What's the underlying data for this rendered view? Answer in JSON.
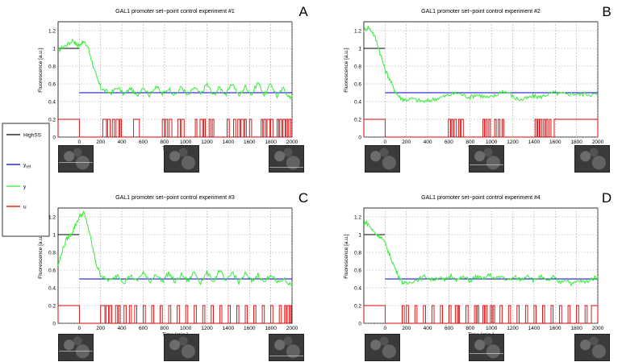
{
  "colors": {
    "highss": "#000000",
    "yref": "#0000cc",
    "y": "#33ee33",
    "u": "#dd0000",
    "grid": "#999999"
  },
  "legend": {
    "items": [
      {
        "label": "HighSS",
        "color": "#000000",
        "sub": ""
      },
      {
        "label": "y",
        "color": "#0000cc",
        "sub": "ref"
      },
      {
        "label": "y",
        "color": "#33ee33",
        "sub": ""
      },
      {
        "label": "u",
        "color": "#dd0000",
        "sub": ""
      }
    ]
  },
  "thumbnails": {
    "count_per_panel": 3,
    "description_visible": false
  },
  "chart_data": [
    {
      "type": "line",
      "panel": "A",
      "title": "GAL1 promoter set−point control experiment #1",
      "xlabel": "Time [min.]",
      "ylabel": "Fluorescence [a.u.]",
      "xlim": [
        -200,
        2000
      ],
      "ylim": [
        0,
        1.3
      ],
      "xticks": [
        "0",
        "200",
        "400",
        "600",
        "800",
        "1000",
        "1200",
        "1400",
        "1600",
        "1800",
        "2000"
      ],
      "yticks": [
        "0",
        "0.2",
        "0.4",
        "0.6",
        "0.8",
        "1",
        "1.2"
      ],
      "highss": {
        "x": [
          -200,
          0
        ],
        "y": 1.0
      },
      "yref": {
        "x": [
          0,
          2000
        ],
        "y": 0.5
      },
      "y": {
        "x": [
          -200,
          -150,
          -100,
          -60,
          -20,
          0,
          40,
          80,
          120,
          160,
          200,
          240,
          300,
          360,
          420,
          480,
          540,
          600,
          660,
          720,
          780,
          840,
          900,
          960,
          1020,
          1080,
          1140,
          1200,
          1260,
          1320,
          1380,
          1440,
          1500,
          1560,
          1620,
          1680,
          1740,
          1800,
          1860,
          1920,
          1980,
          2000
        ],
        "values": [
          0.97,
          1.02,
          1.05,
          1.1,
          1.03,
          1.05,
          1.07,
          1.02,
          0.85,
          0.68,
          0.56,
          0.52,
          0.5,
          0.56,
          0.48,
          0.55,
          0.46,
          0.57,
          0.47,
          0.58,
          0.48,
          0.55,
          0.47,
          0.57,
          0.46,
          0.56,
          0.48,
          0.6,
          0.47,
          0.56,
          0.48,
          0.61,
          0.46,
          0.57,
          0.48,
          0.62,
          0.47,
          0.6,
          0.46,
          0.55,
          0.44,
          0.47
        ]
      },
      "u": {
        "level": 0.2,
        "on_intervals": [
          [
            -200,
            0
          ],
          [
            220,
            255
          ],
          [
            265,
            290
          ],
          [
            310,
            330
          ],
          [
            345,
            370
          ],
          [
            380,
            395
          ],
          [
            510,
            565
          ],
          [
            780,
            800
          ],
          [
            810,
            830
          ],
          [
            845,
            870
          ],
          [
            925,
            950
          ],
          [
            960,
            985
          ],
          [
            1090,
            1105
          ],
          [
            1135,
            1160
          ],
          [
            1170,
            1185
          ],
          [
            1220,
            1235
          ],
          [
            1250,
            1265
          ],
          [
            1390,
            1410
          ],
          [
            1450,
            1470
          ],
          [
            1490,
            1510
          ],
          [
            1520,
            1545
          ],
          [
            1555,
            1570
          ],
          [
            1600,
            1620
          ],
          [
            1710,
            1725
          ],
          [
            1735,
            1755
          ],
          [
            1765,
            1790
          ],
          [
            1800,
            1820
          ],
          [
            1860,
            1875
          ],
          [
            1885,
            1905
          ],
          [
            1915,
            1935
          ],
          [
            1945,
            1960
          ],
          [
            1970,
            1990
          ]
        ]
      }
    },
    {
      "type": "line",
      "panel": "B",
      "title": "GAL1 promoter set−point control experiment #2",
      "xlabel": "Time [min.]",
      "ylabel": "Fluorescence [a.u.]",
      "xlim": [
        -200,
        2000
      ],
      "ylim": [
        0,
        1.3
      ],
      "xticks": [
        "0",
        "200",
        "400",
        "600",
        "800",
        "1000",
        "1200",
        "1400",
        "1600",
        "1800",
        "2000"
      ],
      "yticks": [
        "0",
        "0.2",
        "0.4",
        "0.6",
        "0.8",
        "1",
        "1.2"
      ],
      "highss": {
        "x": [
          -200,
          0
        ],
        "y": 1.0
      },
      "yref": {
        "x": [
          0,
          2000
        ],
        "y": 0.5
      },
      "y": {
        "x": [
          -200,
          -160,
          -120,
          -80,
          -40,
          0,
          40,
          80,
          120,
          160,
          200,
          260,
          320,
          380,
          440,
          500,
          560,
          620,
          680,
          740,
          800,
          860,
          920,
          980,
          1040,
          1100,
          1160,
          1220,
          1280,
          1340,
          1400,
          1460,
          1520,
          1580,
          1640,
          1700,
          1760,
          1820,
          1880,
          1940,
          2000
        ],
        "values": [
          1.2,
          1.24,
          1.19,
          1.08,
          0.92,
          0.76,
          0.66,
          0.55,
          0.47,
          0.43,
          0.42,
          0.43,
          0.41,
          0.4,
          0.42,
          0.44,
          0.46,
          0.48,
          0.5,
          0.47,
          0.45,
          0.48,
          0.46,
          0.44,
          0.47,
          0.52,
          0.5,
          0.44,
          0.42,
          0.44,
          0.46,
          0.45,
          0.48,
          0.5,
          0.49,
          0.48,
          0.49,
          0.48,
          0.49,
          0.48,
          0.48
        ]
      },
      "u": {
        "level": 0.2,
        "on_intervals": [
          [
            -200,
            0
          ],
          [
            595,
            615
          ],
          [
            625,
            640
          ],
          [
            650,
            670
          ],
          [
            690,
            705
          ],
          [
            715,
            735
          ],
          [
            920,
            935
          ],
          [
            945,
            960
          ],
          [
            975,
            990
          ],
          [
            1030,
            1045
          ],
          [
            1065,
            1080
          ],
          [
            1100,
            1115
          ],
          [
            1410,
            1425
          ],
          [
            1435,
            1450
          ],
          [
            1460,
            1475
          ],
          [
            1490,
            1505
          ],
          [
            1515,
            1530
          ],
          [
            1545,
            1560
          ],
          [
            1590,
            2000
          ]
        ]
      }
    },
    {
      "type": "line",
      "panel": "C",
      "title": "GAL1 promoter set−point control experiment #3",
      "xlabel": "Time [min.]",
      "ylabel": "Fluorescence [a.u.]",
      "xlim": [
        -200,
        2000
      ],
      "ylim": [
        0,
        1.3
      ],
      "xticks": [
        "0",
        "200",
        "400",
        "600",
        "800",
        "1000",
        "1200",
        "1400",
        "1600",
        "1800",
        "2000"
      ],
      "yticks": [
        "0",
        "0.2",
        "0.4",
        "0.6",
        "0.8",
        "1",
        "1.2"
      ],
      "highss": {
        "x": [
          -200,
          0
        ],
        "y": 1.0
      },
      "yref": {
        "x": [
          0,
          2000
        ],
        "y": 0.5
      },
      "y": {
        "x": [
          -200,
          -160,
          -120,
          -80,
          -40,
          0,
          40,
          80,
          120,
          160,
          200,
          240,
          300,
          360,
          420,
          480,
          540,
          600,
          660,
          720,
          780,
          840,
          900,
          960,
          1020,
          1080,
          1140,
          1200,
          1260,
          1320,
          1380,
          1440,
          1500,
          1560,
          1620,
          1680,
          1740,
          1800,
          1860,
          1920,
          1980,
          2000
        ],
        "values": [
          0.65,
          0.82,
          0.95,
          1.0,
          1.1,
          1.2,
          1.25,
          1.1,
          0.88,
          0.66,
          0.55,
          0.5,
          0.48,
          0.55,
          0.46,
          0.54,
          0.47,
          0.58,
          0.46,
          0.56,
          0.47,
          0.57,
          0.46,
          0.55,
          0.47,
          0.58,
          0.46,
          0.57,
          0.47,
          0.6,
          0.46,
          0.58,
          0.46,
          0.56,
          0.47,
          0.55,
          0.46,
          0.56,
          0.45,
          0.5,
          0.44,
          0.44
        ]
      },
      "u": {
        "level": 0.2,
        "on_intervals": [
          [
            -200,
            0
          ],
          [
            200,
            240
          ],
          [
            250,
            275
          ],
          [
            285,
            305
          ],
          [
            340,
            360
          ],
          [
            370,
            385
          ],
          [
            420,
            440
          ],
          [
            470,
            490
          ],
          [
            520,
            540
          ],
          [
            600,
            620
          ],
          [
            680,
            700
          ],
          [
            760,
            780
          ],
          [
            840,
            860
          ],
          [
            920,
            940
          ],
          [
            1000,
            1020
          ],
          [
            1080,
            1100
          ],
          [
            1160,
            1180
          ],
          [
            1240,
            1260
          ],
          [
            1320,
            1340
          ],
          [
            1400,
            1420
          ],
          [
            1480,
            1500
          ],
          [
            1560,
            1580
          ],
          [
            1640,
            1660
          ],
          [
            1720,
            1740
          ],
          [
            1800,
            1820
          ],
          [
            1880,
            1900
          ],
          [
            1930,
            1945
          ],
          [
            1955,
            1975
          ],
          [
            1985,
            1995
          ]
        ]
      }
    },
    {
      "type": "line",
      "panel": "D",
      "title": "GAL1 promoter set−point control experiment #4",
      "xlabel": "Time [min.]",
      "ylabel": "Fluorescence [a.u.]",
      "xlim": [
        -200,
        2000
      ],
      "ylim": [
        0,
        1.3
      ],
      "xticks": [
        "0",
        "200",
        "400",
        "600",
        "800",
        "1000",
        "1200",
        "1400",
        "1600",
        "1800",
        "2000"
      ],
      "yticks": [
        "0",
        "0.2",
        "0.4",
        "0.6",
        "0.8",
        "1",
        "1.2"
      ],
      "highss": {
        "x": [
          -200,
          0
        ],
        "y": 1.0
      },
      "yref": {
        "x": [
          0,
          2000
        ],
        "y": 0.5
      },
      "y": {
        "x": [
          -200,
          -160,
          -120,
          -80,
          -40,
          0,
          40,
          80,
          120,
          160,
          200,
          260,
          320,
          380,
          440,
          500,
          560,
          620,
          680,
          740,
          800,
          860,
          920,
          980,
          1040,
          1100,
          1160,
          1220,
          1280,
          1340,
          1400,
          1460,
          1520,
          1580,
          1640,
          1700,
          1760,
          1820,
          1880,
          1940,
          2000
        ],
        "values": [
          1.15,
          1.12,
          1.05,
          1.0,
          0.98,
          0.9,
          0.78,
          0.66,
          0.55,
          0.47,
          0.44,
          0.48,
          0.5,
          0.53,
          0.49,
          0.52,
          0.48,
          0.54,
          0.49,
          0.52,
          0.48,
          0.53,
          0.49,
          0.55,
          0.5,
          0.53,
          0.48,
          0.52,
          0.49,
          0.55,
          0.48,
          0.53,
          0.47,
          0.52,
          0.46,
          0.5,
          0.44,
          0.48,
          0.46,
          0.5,
          0.52
        ]
      },
      "u": {
        "level": 0.2,
        "on_intervals": [
          [
            -200,
            0
          ],
          [
            160,
            180
          ],
          [
            200,
            220
          ],
          [
            280,
            300
          ],
          [
            360,
            380
          ],
          [
            440,
            460
          ],
          [
            520,
            540
          ],
          [
            600,
            620
          ],
          [
            660,
            680
          ],
          [
            690,
            700
          ],
          [
            760,
            780
          ],
          [
            840,
            855
          ],
          [
            865,
            880
          ],
          [
            920,
            935
          ],
          [
            945,
            960
          ],
          [
            990,
            1005
          ],
          [
            1015,
            1030
          ],
          [
            1080,
            1100
          ],
          [
            1160,
            1180
          ],
          [
            1240,
            1260
          ],
          [
            1320,
            1340
          ],
          [
            1400,
            1420
          ],
          [
            1480,
            1500
          ],
          [
            1560,
            1580
          ],
          [
            1640,
            1660
          ],
          [
            1720,
            1740
          ],
          [
            1800,
            1820
          ],
          [
            1880,
            1900
          ],
          [
            1940,
            2000
          ]
        ]
      }
    }
  ],
  "panel_letters": [
    "A",
    "B",
    "C",
    "D"
  ]
}
